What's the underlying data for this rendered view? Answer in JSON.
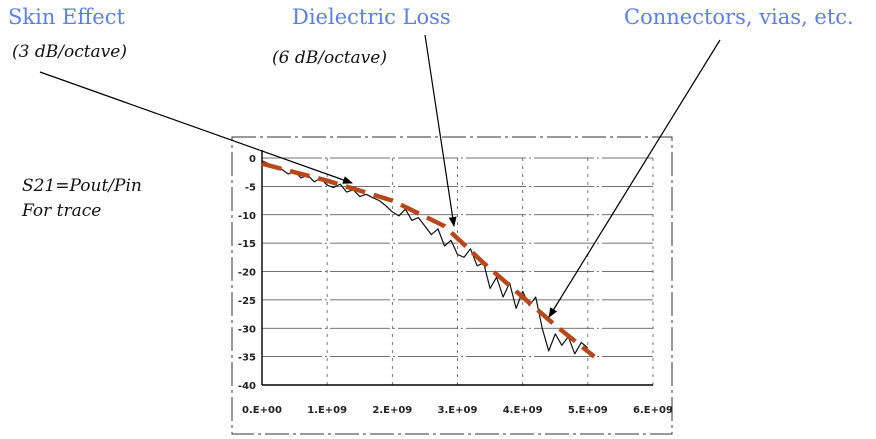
{
  "annotations": {
    "skin_effect": {
      "title": "Skin Effect",
      "subtitle": "(3 dB/octave)"
    },
    "dielectric_loss": {
      "title": "Dielectric Loss",
      "subtitle": "(6 dB/octave)"
    },
    "connectors": {
      "title": "Connectors, vias, etc."
    },
    "s21_line1": "S21=Pout/Pin",
    "s21_line2": "For trace"
  },
  "colors": {
    "annotation_blue": "#5a7fe6",
    "trend_dash": "#b8481a",
    "measured_trace": "#111111"
  },
  "chart_data": {
    "type": "line",
    "title": "",
    "xlabel": "",
    "ylabel": "",
    "xlim": [
      0,
      6000000000
    ],
    "ylim": [
      -40,
      0
    ],
    "x_ticks": [
      0,
      1000000000,
      2000000000,
      3000000000,
      4000000000,
      5000000000,
      6000000000
    ],
    "x_tick_labels": [
      "0.E+00",
      "1.E+09",
      "2.E+09",
      "3.E+09",
      "4.E+09",
      "5.E+09",
      "6.E+09"
    ],
    "y_ticks": [
      0,
      -5,
      -10,
      -15,
      -20,
      -25,
      -30,
      -35,
      -40
    ],
    "y_tick_labels": [
      "0",
      "-5",
      "-10",
      "-15",
      "-20",
      "-25",
      "-30",
      "-35",
      "-40"
    ],
    "grid": true,
    "series": [
      {
        "style": "solid",
        "x": [
          0,
          100000000,
          200000000,
          300000000,
          400000000,
          500000000,
          600000000,
          700000000,
          800000000,
          900000000,
          1000000000,
          1100000000,
          1200000000,
          1300000000,
          1400000000,
          1500000000,
          1600000000,
          1700000000,
          1800000000,
          1900000000,
          2000000000,
          2100000000,
          2200000000,
          2300000000,
          2400000000,
          2500000000,
          2600000000,
          2700000000,
          2800000000,
          2900000000,
          3000000000,
          3100000000,
          3200000000,
          3300000000,
          3400000000,
          3500000000,
          3600000000,
          3700000000,
          3800000000,
          3900000000,
          4000000000,
          4100000000,
          4200000000,
          4300000000,
          4400000000,
          4500000000,
          4600000000,
          4700000000,
          4800000000,
          4900000000,
          5000000000
        ],
        "values": [
          -0.5,
          -1.0,
          -1.6,
          -2.0,
          -2.8,
          -2.4,
          -3.5,
          -3.0,
          -4.2,
          -3.6,
          -4.8,
          -5.2,
          -4.6,
          -6.0,
          -5.6,
          -6.8,
          -6.4,
          -7.0,
          -7.5,
          -8.4,
          -9.5,
          -10.2,
          -9.0,
          -11.0,
          -10.5,
          -12.0,
          -13.5,
          -12.5,
          -15.5,
          -14.5,
          -17.0,
          -17.5,
          -16.0,
          -19.0,
          -18.5,
          -23.0,
          -21.0,
          -24.5,
          -22.0,
          -26.5,
          -23.5,
          -26.0,
          -24.5,
          -30.0,
          -34.0,
          -31.0,
          -33.0,
          -31.5,
          -34.5,
          -32.5,
          -33.5
        ]
      },
      {
        "style": "dashed",
        "x": [
          0,
          1000000000,
          2000000000,
          2800000000,
          3400000000,
          4000000000,
          4500000000,
          5100000000
        ],
        "values": [
          -1.0,
          -4.0,
          -7.5,
          -12.0,
          -18.5,
          -24.5,
          -29.5,
          -35.0
        ]
      }
    ]
  }
}
